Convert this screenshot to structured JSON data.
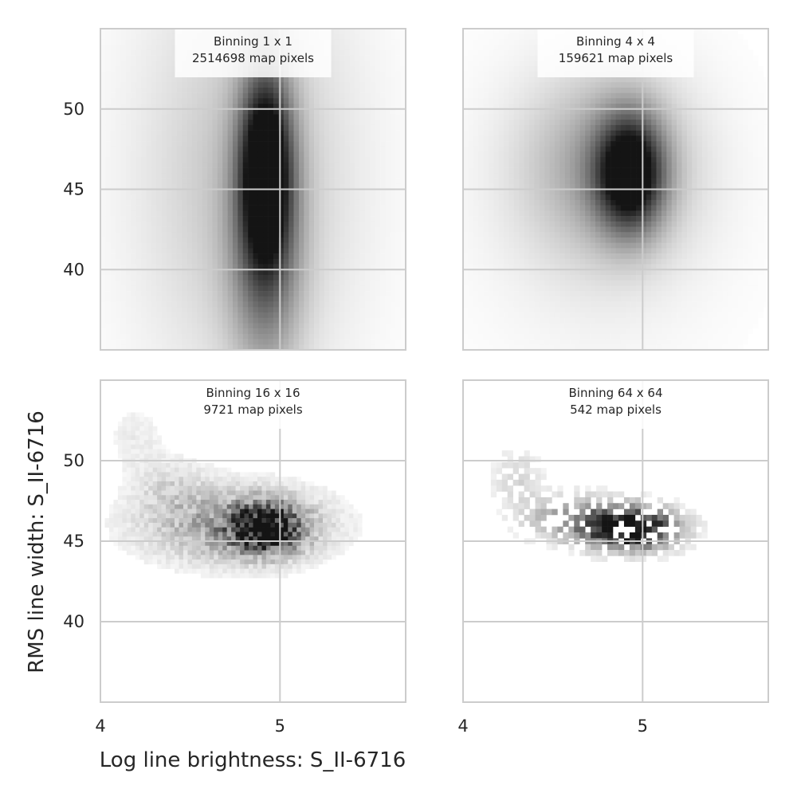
{
  "figure": {
    "xlabel": "Log line brightness: S_II-6716",
    "ylabel": "RMS line width: S_II-6716"
  },
  "chart_data": [
    {
      "type": "heatmap",
      "title": "Binning 1 x 1",
      "subtitle": "2514698 map pixels",
      "xlim": [
        4.0,
        5.7
      ],
      "ylim": [
        35.0,
        55.0
      ],
      "xticks": [
        "4",
        "5"
      ],
      "yticks": [
        "40",
        "45",
        "50"
      ],
      "grid": true,
      "colormap": "greys",
      "peak": {
        "x": 4.92,
        "y": 46.5
      },
      "density_blobs": [
        {
          "cx": 4.92,
          "cy": 46.5,
          "sx": 0.1,
          "sy": 4.2,
          "w": 1.0
        },
        {
          "cx": 4.92,
          "cy": 41.0,
          "sx": 0.14,
          "sy": 5.5,
          "w": 0.45
        },
        {
          "cx": 4.82,
          "cy": 46.0,
          "sx": 0.42,
          "sy": 9.5,
          "w": 0.25
        }
      ]
    },
    {
      "type": "heatmap",
      "title": "Binning 4 x 4",
      "subtitle": "159621 map pixels",
      "xlim": [
        4.0,
        5.7
      ],
      "ylim": [
        35.0,
        55.0
      ],
      "xticks": [
        "4",
        "5"
      ],
      "yticks": [
        "40",
        "45",
        "50"
      ],
      "grid": true,
      "colormap": "greys",
      "peak": {
        "x": 4.93,
        "y": 46.0
      },
      "density_blobs": [
        {
          "cx": 4.93,
          "cy": 46.0,
          "sx": 0.13,
          "sy": 2.5,
          "w": 1.0
        },
        {
          "cx": 4.8,
          "cy": 46.5,
          "sx": 0.32,
          "sy": 4.0,
          "w": 0.35
        },
        {
          "cx": 4.75,
          "cy": 44.0,
          "sx": 0.5,
          "sy": 7.0,
          "w": 0.08
        }
      ]
    },
    {
      "type": "heatmap",
      "title": "Binning 16 x 16",
      "subtitle": "9721 map pixels",
      "xlim": [
        4.0,
        5.7
      ],
      "ylim": [
        35.0,
        55.0
      ],
      "xticks": [
        "4",
        "5"
      ],
      "yticks": [
        "40",
        "45",
        "50"
      ],
      "grid": true,
      "colormap": "greys",
      "peak": {
        "x": 4.92,
        "y": 45.8
      },
      "density_blobs": [
        {
          "cx": 4.92,
          "cy": 45.8,
          "sx": 0.13,
          "sy": 1.0,
          "w": 1.0
        },
        {
          "cx": 4.75,
          "cy": 46.0,
          "sx": 0.35,
          "sy": 1.6,
          "w": 0.4
        },
        {
          "cx": 4.4,
          "cy": 48.5,
          "sx": 0.15,
          "sy": 1.2,
          "w": 0.12
        },
        {
          "cx": 4.2,
          "cy": 51.5,
          "sx": 0.12,
          "sy": 1.5,
          "w": 0.08
        }
      ]
    },
    {
      "type": "heatmap",
      "title": "Binning 64 x 64",
      "subtitle": "542 map pixels",
      "xlim": [
        4.0,
        5.7
      ],
      "ylim": [
        35.0,
        55.0
      ],
      "xticks": [
        "4",
        "5"
      ],
      "yticks": [
        "40",
        "45",
        "50"
      ],
      "grid": true,
      "colormap": "greys",
      "peak": {
        "x": 4.95,
        "y": 45.5
      },
      "density_blobs": [
        {
          "cx": 4.93,
          "cy": 45.8,
          "sx": 0.18,
          "sy": 0.9,
          "w": 1.0
        },
        {
          "cx": 4.6,
          "cy": 46.5,
          "sx": 0.2,
          "sy": 1.0,
          "w": 0.3
        },
        {
          "cx": 4.3,
          "cy": 49.0,
          "sx": 0.1,
          "sy": 1.2,
          "w": 0.15
        }
      ]
    }
  ]
}
